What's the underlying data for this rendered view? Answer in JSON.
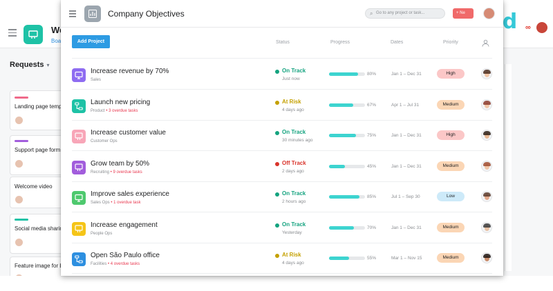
{
  "background": {
    "project_title": "We",
    "tab_label": "Boar",
    "section_title": "Requests",
    "cards": [
      {
        "label": "Landing page temp",
        "bar_color": "#f06a8a"
      },
      {
        "label": "Support page form",
        "bar_color": "#a25ddc"
      },
      {
        "label": "Welcome video",
        "bar_color": ""
      },
      {
        "label": "Social media sharin",
        "bar_color": "#1ec2a6"
      },
      {
        "label": "Feature image for b",
        "bar_color": ""
      }
    ]
  },
  "brand": {
    "text": "bmd",
    "mark": "∞"
  },
  "window": {
    "title": "Company Objectives",
    "search_placeholder": "Go to any project or task...",
    "new_button_label": "+ Ne",
    "add_project_label": "Add Project",
    "columns": {
      "status": "Status",
      "progress": "Progress",
      "dates": "Dates",
      "priority": "Priority"
    },
    "rows": [
      {
        "name": "Increase revenue by 70%",
        "team": "Sales",
        "overdue": "",
        "icon_color": "#8e6cf1",
        "icon": "monitor",
        "status": "On Track",
        "status_color": "#14a37f",
        "time": "Just now",
        "progress": 80,
        "progress_label": "80%",
        "dates": "Jan 1 – Dec 31",
        "priority": "High",
        "priority_color": "#fbc7c7",
        "avatar_face": "#f1c6a8",
        "avatar_hair": "#4a2c1d"
      },
      {
        "name": "Launch new pricing",
        "team": "Product",
        "overdue": "3 overdue tasks",
        "icon_color": "#1ec2a6",
        "icon": "flow",
        "status": "At Risk",
        "status_color": "#c4a000",
        "time": "4 days ago",
        "progress": 67,
        "progress_label": "67%",
        "dates": "Apr 1 – Jul 31",
        "priority": "Medium",
        "priority_color": "#fbd6b5",
        "avatar_face": "#f1c6a8",
        "avatar_hair": "#8b3a2b"
      },
      {
        "name": "Increase customer value",
        "team": "Customer Ops",
        "overdue": "",
        "icon_color": "#f8a6b8",
        "icon": "board",
        "status": "On Track",
        "status_color": "#14a37f",
        "time": "30 minutes ago",
        "progress": 75,
        "progress_label": "75%",
        "dates": "Jan 1 – Dec 31",
        "priority": "High",
        "priority_color": "#fbc7c7",
        "avatar_face": "#e8b894",
        "avatar_hair": "#2b1d14"
      },
      {
        "name": "Grow team by 50%",
        "team": "Recruiting",
        "overdue": "9 overdue tasks",
        "icon_color": "#a25ddc",
        "icon": "board",
        "status": "Off Track",
        "status_color": "#d9342b",
        "time": "2 days ago",
        "progress": 45,
        "progress_label": "45%",
        "dates": "Jan 1 – Dec 31",
        "priority": "Medium",
        "priority_color": "#fbd6b5",
        "avatar_face": "#f1c6a8",
        "avatar_hair": "#a04b2e"
      },
      {
        "name": "Improve sales experience",
        "team": "Sales Ops",
        "overdue": "1 overdue task",
        "icon_color": "#4ec96e",
        "icon": "monitor",
        "status": "On Track",
        "status_color": "#14a37f",
        "time": "2 hours ago",
        "progress": 85,
        "progress_label": "85%",
        "dates": "Jul 1 – Sep 30",
        "priority": "Low",
        "priority_color": "#cdeaf9",
        "avatar_face": "#e3a98c",
        "avatar_hair": "#5a3a2a"
      },
      {
        "name": "Increase engagement",
        "team": "People Ops",
        "overdue": "",
        "icon_color": "#f5c518",
        "icon": "board",
        "status": "On Track",
        "status_color": "#14a37f",
        "time": "Yesterday",
        "progress": 70,
        "progress_label": "70%",
        "dates": "Jan 1 – Dec 31",
        "priority": "Medium",
        "priority_color": "#fbd6b5",
        "avatar_face": "#e8c2a5",
        "avatar_hair": "#3a3a3a"
      },
      {
        "name": "Open São Paulo office",
        "team": "Facilities",
        "overdue": "4 overdue tasks",
        "icon_color": "#2d8fe0",
        "icon": "flow",
        "status": "At Risk",
        "status_color": "#c4a000",
        "time": "4 days ago",
        "progress": 55,
        "progress_label": "55%",
        "dates": "Mar 1 – Nov 15",
        "priority": "Medium",
        "priority_color": "#fbd6b5",
        "avatar_face": "#c98d6c",
        "avatar_hair": "#1e1410"
      }
    ]
  }
}
